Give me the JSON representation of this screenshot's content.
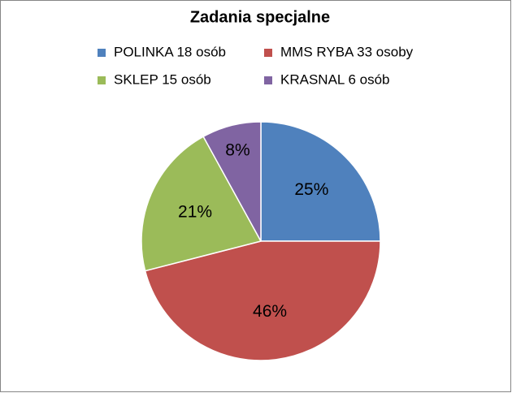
{
  "chart_data": {
    "type": "pie",
    "title": "Zadania specjalne",
    "categories": [
      "POLINKA 18 osób",
      "MMS RYBA 33 osoby",
      "SKLEP 15 osób",
      "KRASNAL 6 osób"
    ],
    "values": [
      25,
      46,
      21,
      8
    ],
    "value_labels": [
      "25%",
      "46%",
      "21%",
      "8%"
    ],
    "colors": [
      "#4f81bd",
      "#c0504d",
      "#9bbb59",
      "#8064a2"
    ],
    "legend": "top"
  }
}
